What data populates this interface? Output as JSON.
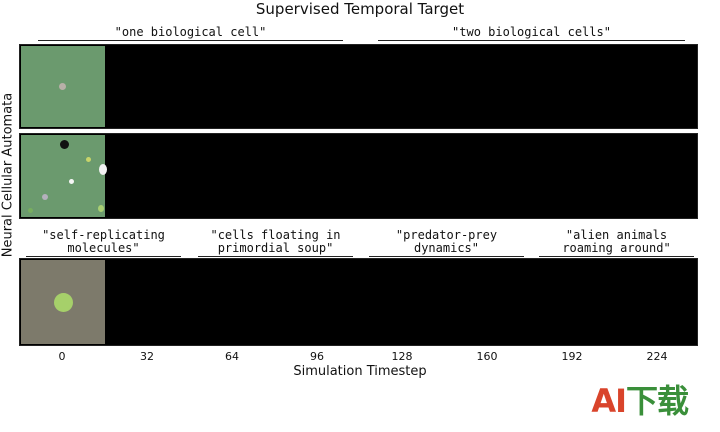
{
  "figure": {
    "title": "Supervised Temporal Target",
    "ylabel": "Neural Cellular Automata",
    "xlabel": "Simulation Timestep",
    "xticks": [
      "0",
      "32",
      "64",
      "96",
      "128",
      "160",
      "192",
      "224"
    ]
  },
  "prompts": {
    "top_left": "\"one biological cell\"",
    "top_right": "\"two biological cells\"",
    "b1": "\"self-replicating\nmolecules\"",
    "b2": "\"cells floating in\nprimordial soup\"",
    "b3": "\"predator-prey\ndynamics\"",
    "b4": "\"alien animals\nroaming around\""
  },
  "colors": {
    "green_bg": "#6b9a6e",
    "olive_bg": "#7d7a6b",
    "strip_bg": "#000000",
    "watermark_red": "#d9442b",
    "watermark_green": "#3a8f3a"
  },
  "watermark": {
    "part1": "AI",
    "part2": "下载"
  }
}
